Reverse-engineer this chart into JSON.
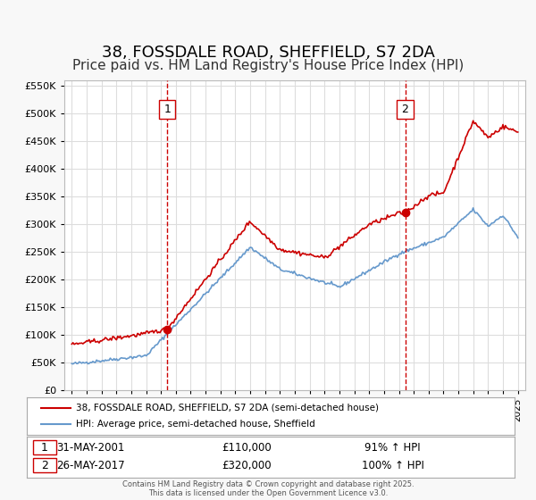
{
  "title": "38, FOSSDALE ROAD, SHEFFIELD, S7 2DA",
  "subtitle": "Price paid vs. HM Land Registry's House Price Index (HPI)",
  "title_fontsize": 13,
  "subtitle_fontsize": 11,
  "red_label": "38, FOSSDALE ROAD, SHEFFIELD, S7 2DA (semi-detached house)",
  "blue_label": "HPI: Average price, semi-detached house, Sheffield",
  "annotation1": {
    "num": "1",
    "date": "31-MAY-2001",
    "price": "£110,000",
    "pct": "91% ↑ HPI"
  },
  "annotation2": {
    "num": "2",
    "date": "26-MAY-2017",
    "price": "£320,000",
    "pct": "100% ↑ HPI"
  },
  "footer": "Contains HM Land Registry data © Crown copyright and database right 2025.\nThis data is licensed under the Open Government Licence v3.0.",
  "ylim": [
    0,
    560000
  ],
  "yticks": [
    0,
    50000,
    100000,
    150000,
    200000,
    250000,
    300000,
    350000,
    400000,
    450000,
    500000,
    550000
  ],
  "background_color": "#f8f8f8",
  "plot_bg_color": "#ffffff",
  "grid_color": "#dddddd",
  "red_color": "#cc0000",
  "blue_color": "#6699cc",
  "vline_color": "#cc0000",
  "marker_color": "#cc0000",
  "vline1_x": 2001.42,
  "vline2_x": 2017.42,
  "marker1_x": 2001.42,
  "marker1_y": 110000,
  "marker2_x": 2017.42,
  "marker2_y": 320000,
  "xlim": [
    1994.5,
    2025.5
  ],
  "xticks": [
    1995,
    1996,
    1997,
    1998,
    1999,
    2000,
    2001,
    2002,
    2003,
    2004,
    2005,
    2006,
    2007,
    2008,
    2009,
    2010,
    2011,
    2012,
    2013,
    2014,
    2015,
    2016,
    2017,
    2018,
    2019,
    2020,
    2021,
    2022,
    2023,
    2024,
    2025
  ]
}
